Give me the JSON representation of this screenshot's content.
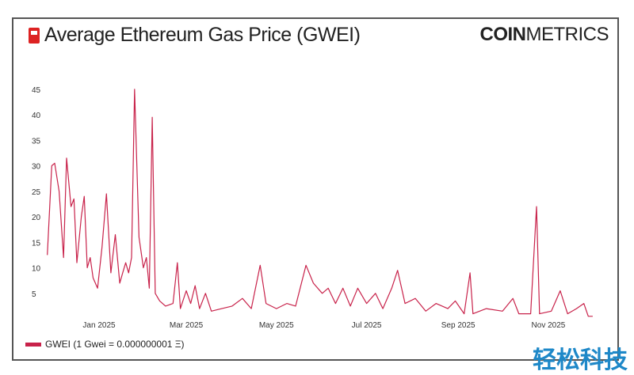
{
  "header": {
    "title": "Average Ethereum Gas Price (GWEI)",
    "logo_bold": "COIN",
    "logo_light": "METRICS",
    "icon": "gas-pump-icon"
  },
  "watermark": "轻松科技",
  "chart_data": {
    "type": "line",
    "title": "Average Ethereum Gas Price (GWEI)",
    "xlabel": "",
    "ylabel": "",
    "ylim": [
      0,
      48
    ],
    "yticks": [
      5,
      10,
      15,
      20,
      25,
      30,
      35,
      40,
      45
    ],
    "xticks": [
      {
        "date": "2025-01-01",
        "label": "Jan 2025"
      },
      {
        "date": "2025-03-01",
        "label": "Mar 2025"
      },
      {
        "date": "2025-05-01",
        "label": "May 2025"
      },
      {
        "date": "2025-07-01",
        "label": "Jul 2025"
      },
      {
        "date": "2025-09-01",
        "label": "Sep 2025"
      },
      {
        "date": "2025-11-01",
        "label": "Nov 2025"
      }
    ],
    "grid": false,
    "legend_position": "bottom-left",
    "series": [
      {
        "name": "GWEI (1 Gwei = 0.000000001 Ξ)",
        "color": "#c8224a",
        "points": [
          [
            "2024-11-27",
            12.5
          ],
          [
            "2024-11-30",
            30
          ],
          [
            "2024-12-02",
            30.5
          ],
          [
            "2024-12-05",
            25
          ],
          [
            "2024-12-08",
            12
          ],
          [
            "2024-12-10",
            31.5
          ],
          [
            "2024-12-13",
            22
          ],
          [
            "2024-12-15",
            23.5
          ],
          [
            "2024-12-17",
            11
          ],
          [
            "2024-12-20",
            20
          ],
          [
            "2024-12-22",
            24
          ],
          [
            "2024-12-24",
            10
          ],
          [
            "2024-12-26",
            12
          ],
          [
            "2024-12-28",
            8
          ],
          [
            "2024-12-31",
            6
          ],
          [
            "2025-01-03",
            14
          ],
          [
            "2025-01-06",
            24.5
          ],
          [
            "2025-01-09",
            9
          ],
          [
            "2025-01-12",
            16.5
          ],
          [
            "2025-01-15",
            7
          ],
          [
            "2025-01-17",
            9
          ],
          [
            "2025-01-19",
            11
          ],
          [
            "2025-01-21",
            9
          ],
          [
            "2025-01-23",
            12
          ],
          [
            "2025-01-25",
            45
          ],
          [
            "2025-01-28",
            16
          ],
          [
            "2025-01-31",
            10
          ],
          [
            "2025-02-02",
            12
          ],
          [
            "2025-02-04",
            6
          ],
          [
            "2025-02-06",
            39.5
          ],
          [
            "2025-02-08",
            5
          ],
          [
            "2025-02-11",
            3.5
          ],
          [
            "2025-02-15",
            2.5
          ],
          [
            "2025-02-20",
            3
          ],
          [
            "2025-02-23",
            11
          ],
          [
            "2025-02-25",
            2
          ],
          [
            "2025-03-01",
            5.5
          ],
          [
            "2025-03-04",
            3
          ],
          [
            "2025-03-07",
            6.5
          ],
          [
            "2025-03-10",
            2
          ],
          [
            "2025-03-14",
            5
          ],
          [
            "2025-03-18",
            1.5
          ],
          [
            "2025-03-25",
            2
          ],
          [
            "2025-04-01",
            2.5
          ],
          [
            "2025-04-08",
            4
          ],
          [
            "2025-04-14",
            2
          ],
          [
            "2025-04-20",
            10.5
          ],
          [
            "2025-04-24",
            3
          ],
          [
            "2025-05-01",
            2
          ],
          [
            "2025-05-08",
            3
          ],
          [
            "2025-05-14",
            2.5
          ],
          [
            "2025-05-21",
            10.5
          ],
          [
            "2025-05-26",
            7
          ],
          [
            "2025-06-01",
            5
          ],
          [
            "2025-06-05",
            6
          ],
          [
            "2025-06-10",
            3
          ],
          [
            "2025-06-15",
            6
          ],
          [
            "2025-06-20",
            2.5
          ],
          [
            "2025-06-25",
            6
          ],
          [
            "2025-07-01",
            3
          ],
          [
            "2025-07-07",
            5
          ],
          [
            "2025-07-12",
            2
          ],
          [
            "2025-07-18",
            6
          ],
          [
            "2025-07-22",
            9.5
          ],
          [
            "2025-07-27",
            3
          ],
          [
            "2025-08-03",
            4
          ],
          [
            "2025-08-10",
            1.5
          ],
          [
            "2025-08-17",
            3
          ],
          [
            "2025-08-25",
            2
          ],
          [
            "2025-08-30",
            3.5
          ],
          [
            "2025-09-05",
            1
          ],
          [
            "2025-09-09",
            9
          ],
          [
            "2025-09-11",
            1
          ],
          [
            "2025-09-20",
            2
          ],
          [
            "2025-10-01",
            1.5
          ],
          [
            "2025-10-08",
            4
          ],
          [
            "2025-10-12",
            1
          ],
          [
            "2025-10-20",
            1
          ],
          [
            "2025-10-24",
            22
          ],
          [
            "2025-10-26",
            1
          ],
          [
            "2025-11-03",
            1.5
          ],
          [
            "2025-11-09",
            5.5
          ],
          [
            "2025-11-14",
            1
          ],
          [
            "2025-11-20",
            2
          ],
          [
            "2025-11-25",
            3
          ],
          [
            "2025-11-28",
            0.5
          ],
          [
            "2025-12-01",
            0.5
          ]
        ]
      }
    ]
  }
}
